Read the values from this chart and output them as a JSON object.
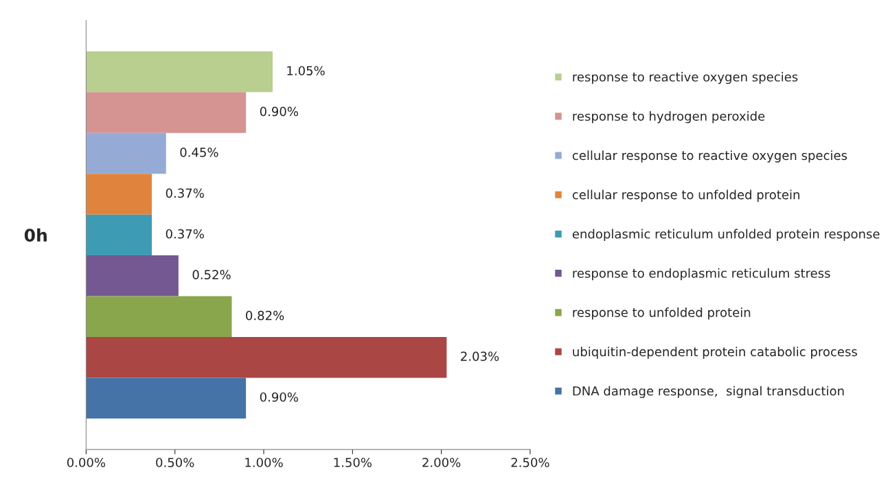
{
  "chart_data": {
    "type": "bar",
    "orientation": "horizontal",
    "categories": [
      "0h"
    ],
    "xlim": [
      0,
      2.5
    ],
    "xticks": [
      {
        "value": 0,
        "label": "0.00%"
      },
      {
        "value": 0.5,
        "label": "0.50%"
      },
      {
        "value": 1.0,
        "label": "1.00%"
      },
      {
        "value": 1.5,
        "label": "1.50%"
      },
      {
        "value": 2.0,
        "label": "2.00%"
      },
      {
        "value": 2.5,
        "label": "2.50%"
      }
    ],
    "grid": false,
    "legend": "right",
    "series": [
      {
        "name": "response to reactive oxygen species",
        "color": "#b8cf90",
        "values": [
          1.05
        ],
        "value_labels": [
          "1.05%"
        ]
      },
      {
        "name": "response to hydrogen peroxide",
        "color": "#d59392",
        "values": [
          0.9
        ],
        "value_labels": [
          "0.90%"
        ]
      },
      {
        "name": "cellular response to reactive oxygen species",
        "color": "#95abd6",
        "values": [
          0.45
        ],
        "value_labels": [
          "0.45%"
        ]
      },
      {
        "name": "cellular response to unfolded protein",
        "color": "#e0843d",
        "values": [
          0.37
        ],
        "value_labels": [
          "0.37%"
        ]
      },
      {
        "name": "endoplasmic reticulum unfolded protein response",
        "color": "#3d9cb3",
        "values": [
          0.37
        ],
        "value_labels": [
          "0.37%"
        ]
      },
      {
        "name": "response to endoplasmic reticulum stress",
        "color": "#735891",
        "values": [
          0.52
        ],
        "value_labels": [
          "0.52%"
        ]
      },
      {
        "name": "response to unfolded protein",
        "color": "#8aa64c",
        "values": [
          0.82
        ],
        "value_labels": [
          "0.82%"
        ]
      },
      {
        "name": "ubiquitin-dependent protein catabolic process",
        "color": "#aa4644",
        "values": [
          2.03
        ],
        "value_labels": [
          "2.03%"
        ]
      },
      {
        "name": "DNA damage response,  signal transduction",
        "color": "#4572a7",
        "values": [
          0.9
        ],
        "value_labels": [
          "0.90%"
        ]
      }
    ]
  }
}
